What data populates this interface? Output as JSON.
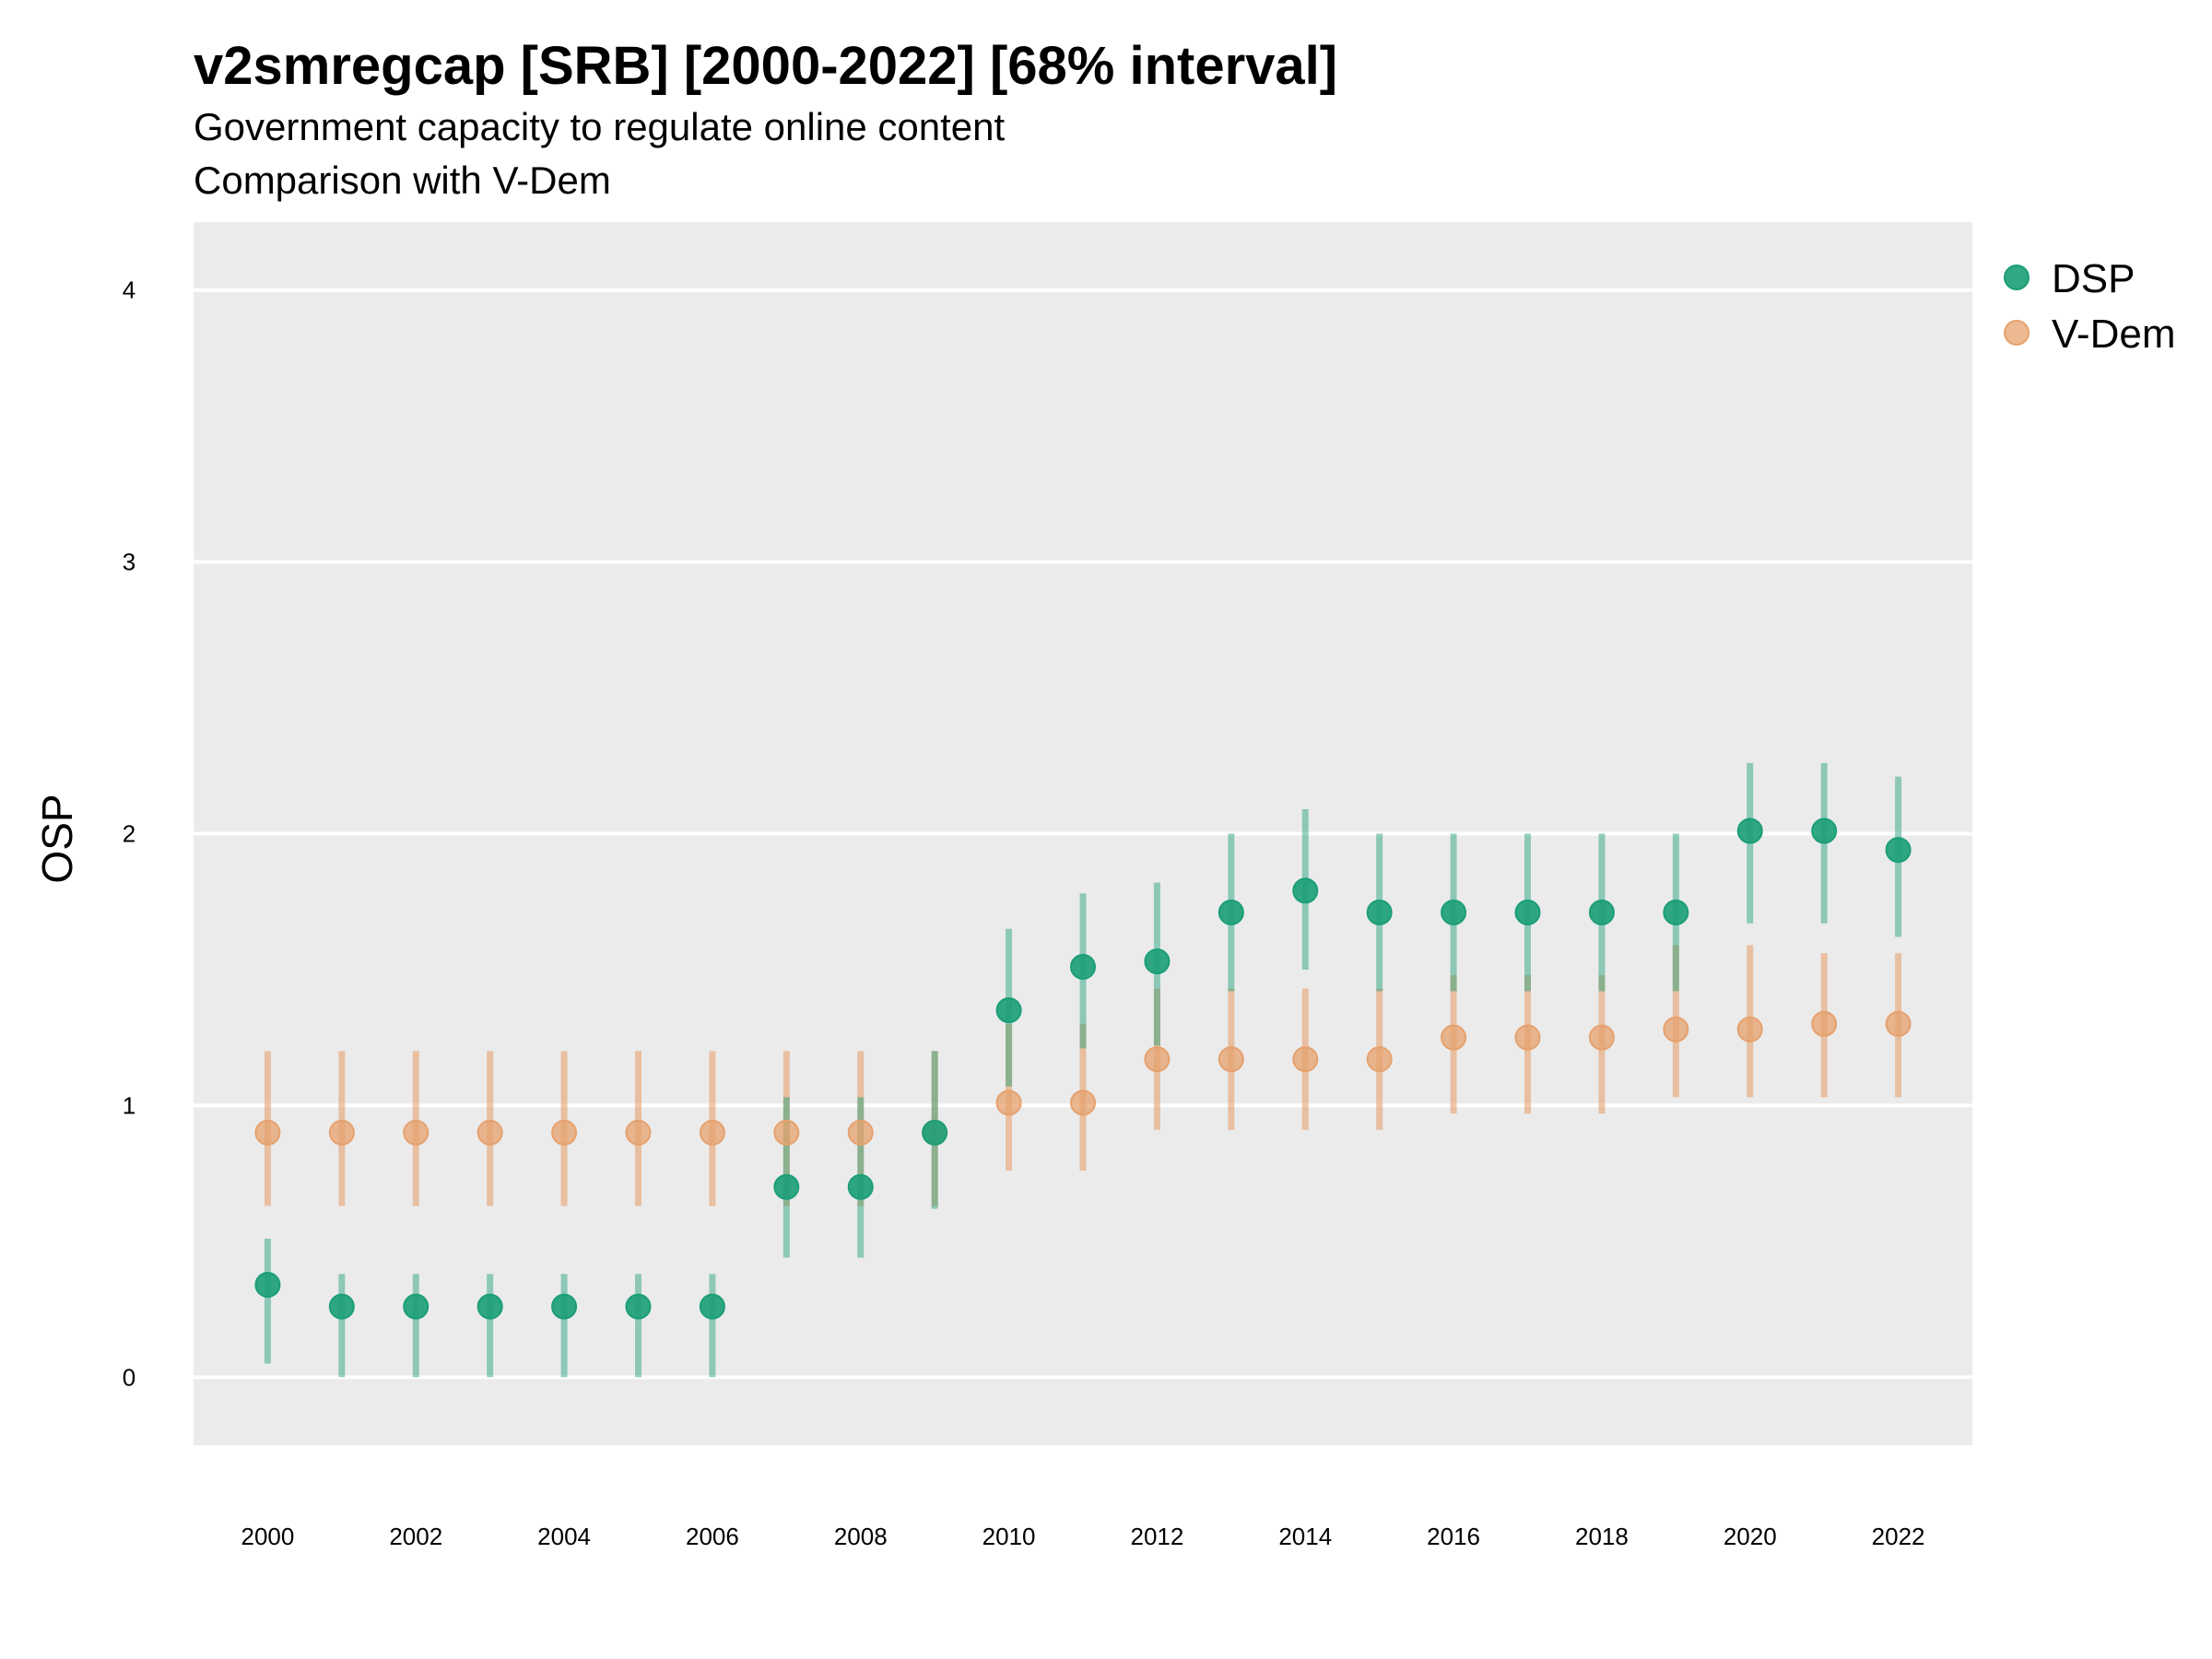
{
  "chart_data": {
    "type": "scatter",
    "title": "v2smregcap [SRB] [2000-2022] [68% interval]",
    "subtitle": [
      "Government capacity to regulate online content",
      "Comparison with V-Dem"
    ],
    "xlabel": "",
    "ylabel": "OSP",
    "xlim": [
      1999,
      2023
    ],
    "ylim": [
      -0.25,
      4.25
    ],
    "x_ticks": [
      2000,
      2002,
      2004,
      2006,
      2008,
      2010,
      2012,
      2014,
      2016,
      2018,
      2020,
      2022
    ],
    "y_ticks": [
      0,
      1,
      2,
      3,
      4
    ],
    "grid": "horizontal",
    "legend_position": "top-right",
    "x": [
      2000,
      2001,
      2002,
      2003,
      2004,
      2005,
      2006,
      2007,
      2008,
      2009,
      2010,
      2011,
      2012,
      2013,
      2014,
      2015,
      2016,
      2017,
      2018,
      2019,
      2020,
      2021,
      2022
    ],
    "series": [
      {
        "name": "DSP",
        "color": "#1b9e77",
        "values": [
          0.34,
          0.26,
          0.26,
          0.26,
          0.26,
          0.26,
          0.26,
          0.7,
          0.7,
          0.9,
          1.35,
          1.51,
          1.53,
          1.71,
          1.79,
          1.71,
          1.71,
          1.71,
          1.71,
          1.71,
          2.01,
          2.01,
          1.94
        ],
        "lower": [
          0.05,
          0.0,
          0.0,
          0.0,
          0.0,
          0.0,
          0.0,
          0.44,
          0.44,
          0.62,
          1.07,
          1.21,
          1.22,
          1.42,
          1.5,
          1.42,
          1.42,
          1.42,
          1.42,
          1.42,
          1.67,
          1.67,
          1.62
        ],
        "upper": [
          0.51,
          0.38,
          0.38,
          0.38,
          0.38,
          0.38,
          0.38,
          1.03,
          1.03,
          1.2,
          1.65,
          1.78,
          1.82,
          2.0,
          2.09,
          2.0,
          2.0,
          2.0,
          2.0,
          2.0,
          2.26,
          2.26,
          2.21
        ]
      },
      {
        "name": "V-Dem",
        "color": "#e6a16e",
        "values": [
          0.9,
          0.9,
          0.9,
          0.9,
          0.9,
          0.9,
          0.9,
          0.9,
          0.9,
          0.9,
          1.01,
          1.01,
          1.17,
          1.17,
          1.17,
          1.17,
          1.25,
          1.25,
          1.25,
          1.28,
          1.28,
          1.3,
          1.3
        ],
        "lower": [
          0.63,
          0.63,
          0.63,
          0.63,
          0.63,
          0.63,
          0.63,
          0.63,
          0.63,
          0.63,
          0.76,
          0.76,
          0.91,
          0.91,
          0.91,
          0.91,
          0.97,
          0.97,
          0.97,
          1.03,
          1.03,
          1.03,
          1.03
        ],
        "upper": [
          1.2,
          1.2,
          1.2,
          1.2,
          1.2,
          1.2,
          1.2,
          1.2,
          1.2,
          1.2,
          1.3,
          1.3,
          1.43,
          1.43,
          1.43,
          1.43,
          1.48,
          1.48,
          1.48,
          1.59,
          1.59,
          1.56,
          1.56
        ]
      }
    ]
  }
}
